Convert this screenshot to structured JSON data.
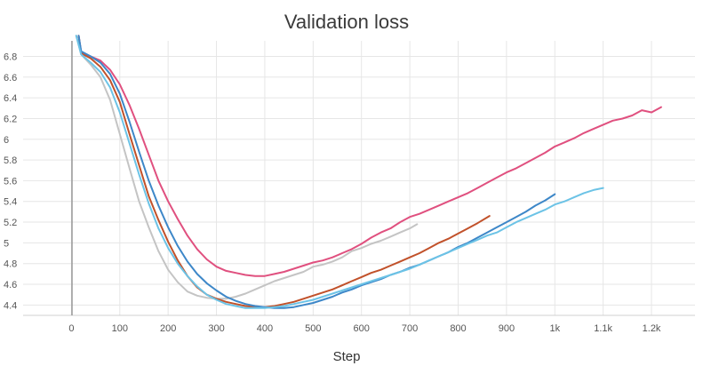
{
  "chart_data": {
    "type": "line",
    "title": "Validation loss",
    "xlabel": "Step",
    "ylabel": "",
    "xlim": [
      -100,
      1290
    ],
    "ylim": [
      4.3,
      6.95
    ],
    "x_ticks": [
      0,
      100,
      200,
      300,
      400,
      500,
      600,
      700,
      800,
      900,
      1000,
      1100,
      1200
    ],
    "x_tick_labels": [
      "0",
      "100",
      "200",
      "300",
      "400",
      "500",
      "600",
      "700",
      "800",
      "900",
      "1k",
      "1.1k",
      "1.2k"
    ],
    "y_ticks": [
      4.4,
      4.6,
      4.8,
      5,
      5.2,
      5.4,
      5.6,
      5.8,
      6,
      6.2,
      6.4,
      6.6,
      6.8
    ],
    "y_tick_labels": [
      "4.4",
      "4.6",
      "4.8",
      "5",
      "5.2",
      "5.4",
      "5.6",
      "5.8",
      "6",
      "6.2",
      "6.4",
      "6.6",
      "6.8"
    ],
    "grid": true,
    "series": [
      {
        "color": "#c4c4c4",
        "x": [
          10,
          20,
          40,
          60,
          80,
          100,
          120,
          140,
          160,
          180,
          200,
          220,
          240,
          260,
          280,
          300,
          320,
          340,
          360,
          380,
          400,
          420,
          440,
          460,
          480,
          500,
          520,
          540,
          560,
          580,
          600,
          620,
          640,
          660,
          680,
          700,
          715
        ],
        "y": [
          7.0,
          6.82,
          6.72,
          6.6,
          6.38,
          6.05,
          5.72,
          5.4,
          5.15,
          4.92,
          4.74,
          4.62,
          4.53,
          4.49,
          4.47,
          4.46,
          4.46,
          4.48,
          4.51,
          4.55,
          4.59,
          4.63,
          4.66,
          4.69,
          4.72,
          4.77,
          4.79,
          4.82,
          4.86,
          4.92,
          4.95,
          4.99,
          5.02,
          5.06,
          5.1,
          5.14,
          5.18
        ]
      },
      {
        "color": "#e0507f",
        "x": [
          15,
          20,
          40,
          60,
          80,
          100,
          120,
          140,
          160,
          180,
          200,
          220,
          240,
          260,
          280,
          300,
          320,
          340,
          360,
          380,
          400,
          420,
          440,
          460,
          480,
          500,
          520,
          540,
          560,
          580,
          600,
          620,
          640,
          660,
          680,
          700,
          720,
          740,
          760,
          780,
          800,
          820,
          840,
          860,
          880,
          900,
          920,
          940,
          960,
          980,
          1000,
          1020,
          1040,
          1060,
          1080,
          1100,
          1120,
          1140,
          1160,
          1180,
          1200,
          1220
        ],
        "y": [
          7.0,
          6.84,
          6.8,
          6.76,
          6.67,
          6.53,
          6.33,
          6.1,
          5.85,
          5.6,
          5.4,
          5.23,
          5.07,
          4.94,
          4.84,
          4.77,
          4.73,
          4.71,
          4.69,
          4.68,
          4.68,
          4.7,
          4.72,
          4.75,
          4.78,
          4.81,
          4.83,
          4.86,
          4.9,
          4.94,
          4.99,
          5.05,
          5.1,
          5.14,
          5.2,
          5.25,
          5.28,
          5.32,
          5.36,
          5.4,
          5.44,
          5.48,
          5.53,
          5.58,
          5.63,
          5.68,
          5.72,
          5.77,
          5.82,
          5.87,
          5.93,
          5.97,
          6.01,
          6.06,
          6.1,
          6.14,
          6.18,
          6.2,
          6.23,
          6.28,
          6.26,
          6.31
        ]
      },
      {
        "color": "#c1512a",
        "x": [
          15,
          20,
          40,
          60,
          80,
          100,
          120,
          140,
          160,
          180,
          200,
          220,
          240,
          260,
          280,
          300,
          320,
          340,
          360,
          380,
          400,
          420,
          440,
          460,
          480,
          500,
          520,
          540,
          560,
          580,
          600,
          620,
          640,
          660,
          680,
          700,
          720,
          740,
          760,
          780,
          800,
          820,
          840,
          865
        ],
        "y": [
          7.0,
          6.83,
          6.78,
          6.7,
          6.57,
          6.36,
          6.05,
          5.75,
          5.45,
          5.22,
          5.01,
          4.83,
          4.68,
          4.57,
          4.5,
          4.46,
          4.43,
          4.41,
          4.39,
          4.38,
          4.38,
          4.39,
          4.41,
          4.43,
          4.46,
          4.49,
          4.52,
          4.55,
          4.59,
          4.63,
          4.67,
          4.71,
          4.74,
          4.78,
          4.82,
          4.86,
          4.9,
          4.95,
          5.0,
          5.04,
          5.09,
          5.14,
          5.19,
          5.26
        ]
      },
      {
        "color": "#3d87c8",
        "x": [
          15,
          20,
          40,
          60,
          80,
          100,
          120,
          140,
          160,
          180,
          200,
          220,
          240,
          260,
          280,
          300,
          320,
          340,
          360,
          380,
          400,
          420,
          440,
          460,
          480,
          500,
          520,
          540,
          560,
          580,
          600,
          620,
          640,
          660,
          680,
          700,
          720,
          740,
          760,
          780,
          800,
          820,
          840,
          860,
          880,
          900,
          920,
          940,
          960,
          980,
          1000
        ],
        "y": [
          7.0,
          6.85,
          6.8,
          6.74,
          6.63,
          6.44,
          6.17,
          5.88,
          5.6,
          5.36,
          5.15,
          4.97,
          4.82,
          4.7,
          4.61,
          4.54,
          4.48,
          4.44,
          4.41,
          4.39,
          4.38,
          4.37,
          4.37,
          4.38,
          4.4,
          4.42,
          4.45,
          4.48,
          4.52,
          4.55,
          4.59,
          4.62,
          4.65,
          4.69,
          4.72,
          4.76,
          4.79,
          4.83,
          4.87,
          4.91,
          4.96,
          5.0,
          5.05,
          5.1,
          5.15,
          5.2,
          5.25,
          5.3,
          5.36,
          5.41,
          5.47
        ]
      },
      {
        "color": "#6cc3e6",
        "x": [
          10,
          20,
          40,
          60,
          80,
          100,
          120,
          140,
          160,
          180,
          200,
          220,
          240,
          260,
          280,
          300,
          320,
          340,
          360,
          380,
          400,
          420,
          440,
          460,
          480,
          500,
          520,
          540,
          560,
          580,
          600,
          620,
          640,
          660,
          680,
          700,
          720,
          740,
          760,
          780,
          800,
          820,
          840,
          860,
          880,
          900,
          920,
          940,
          960,
          980,
          1000,
          1020,
          1040,
          1060,
          1080,
          1100
        ],
        "y": [
          7.0,
          6.82,
          6.74,
          6.65,
          6.5,
          6.26,
          5.96,
          5.66,
          5.38,
          5.14,
          4.95,
          4.8,
          4.68,
          4.58,
          4.5,
          4.45,
          4.41,
          4.39,
          4.37,
          4.37,
          4.37,
          4.38,
          4.39,
          4.41,
          4.43,
          4.45,
          4.48,
          4.51,
          4.54,
          4.57,
          4.6,
          4.63,
          4.66,
          4.69,
          4.72,
          4.75,
          4.79,
          4.83,
          4.87,
          4.91,
          4.95,
          4.99,
          5.03,
          5.07,
          5.1,
          5.15,
          5.2,
          5.24,
          5.28,
          5.32,
          5.37,
          5.4,
          5.44,
          5.48,
          5.51,
          5.53
        ]
      }
    ]
  }
}
